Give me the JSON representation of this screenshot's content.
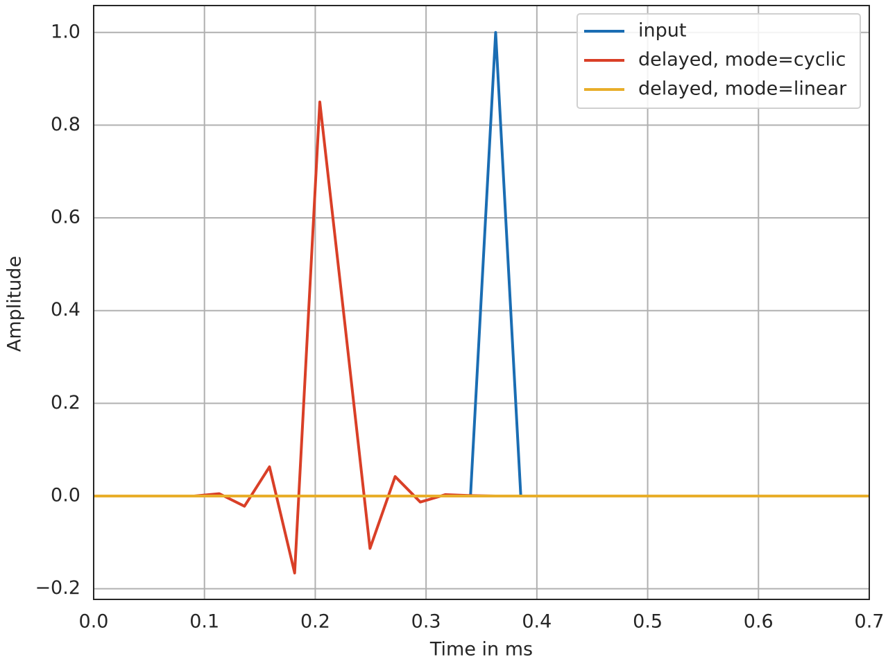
{
  "chart_data": {
    "type": "line",
    "xlabel": "Time in ms",
    "ylabel": "Amplitude",
    "x": [
      0,
      0.0227,
      0.0454,
      0.068,
      0.0907,
      0.1134,
      0.1361,
      0.1587,
      0.1814,
      0.2041,
      0.2268,
      0.2494,
      0.2721,
      0.2948,
      0.3175,
      0.3401,
      0.3628,
      0.3855,
      0.4082,
      0.4308,
      0.4535,
      0.4762,
      0.4989,
      0.5215,
      0.5442,
      0.5669,
      0.5896,
      0.6122,
      0.6349,
      0.6576,
      0.6803,
      0.7029
    ],
    "series": [
      {
        "name": "input",
        "color": "#1a6db3",
        "values": [
          0,
          0,
          0,
          0,
          0,
          0,
          0,
          0,
          0,
          0,
          0,
          0,
          0,
          0,
          0,
          0,
          1.0,
          0,
          0,
          0,
          0,
          0,
          0,
          0,
          0,
          0,
          0,
          0,
          0,
          0,
          0,
          0
        ]
      },
      {
        "name": "delayed, mode=cyclic",
        "color": "#d93f27",
        "values": [
          0,
          0,
          0,
          0,
          0,
          0.005,
          -0.022,
          0.063,
          -0.166,
          0.85,
          0.37,
          -0.113,
          0.042,
          -0.013,
          0.003,
          0.001,
          0,
          0,
          0,
          0,
          0,
          0,
          0,
          0,
          0,
          0,
          0,
          0,
          0,
          0,
          0,
          0
        ]
      },
      {
        "name": "delayed, mode=linear",
        "color": "#e8ae2a",
        "values": [
          0,
          0,
          0,
          0,
          0,
          0,
          0,
          0,
          0,
          0,
          0,
          0,
          0,
          0,
          0,
          0,
          0,
          0,
          0,
          0,
          0,
          0,
          0,
          0,
          0,
          0,
          0,
          0,
          0,
          0,
          0,
          0
        ]
      }
    ],
    "xlim": [
      0,
      0.7
    ],
    "ylim": [
      -0.223,
      1.058
    ],
    "xticks": [
      {
        "value": 0,
        "label": "0.0"
      },
      0.1,
      0.2,
      0.3,
      0.4,
      0.5,
      0.6,
      0.7
    ],
    "yticks": [
      {
        "value": -0.2,
        "label": "−0.2"
      },
      {
        "value": 0,
        "label": "0.0"
      },
      0.2,
      0.4,
      0.6,
      0.8,
      {
        "value": 1,
        "label": "1.0"
      }
    ],
    "grid": true,
    "legend": "upper right"
  }
}
